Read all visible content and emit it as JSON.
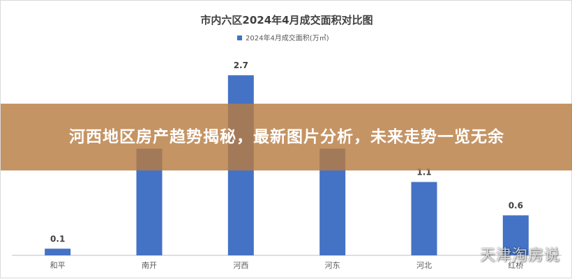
{
  "overlay": {
    "headline": "河西地区房产趋势揭秘，最新图片分析，未来走势一览无余"
  },
  "watermark": {
    "text": "天津淘房说"
  },
  "colors": {
    "bar": "#4472c4",
    "overlay": "#b87d42",
    "axis": "#bfbfbf"
  },
  "chart_data": {
    "type": "bar",
    "title": "市内六区2024年4月成交面积对比图",
    "legend_position": "top-center",
    "grid": false,
    "categories": [
      "和平",
      "南开",
      "河西",
      "河东",
      "河北",
      "红桥"
    ],
    "series": [
      {
        "name": "2024年4月成交面积(万㎡)",
        "values": [
          0.1,
          1.6,
          2.7,
          1.6,
          1.1,
          0.6
        ],
        "labels": [
          "0.1",
          "",
          "2.7",
          "",
          "1.1",
          "0.6"
        ]
      }
    ],
    "ylim": [
      0,
      2.9
    ]
  }
}
